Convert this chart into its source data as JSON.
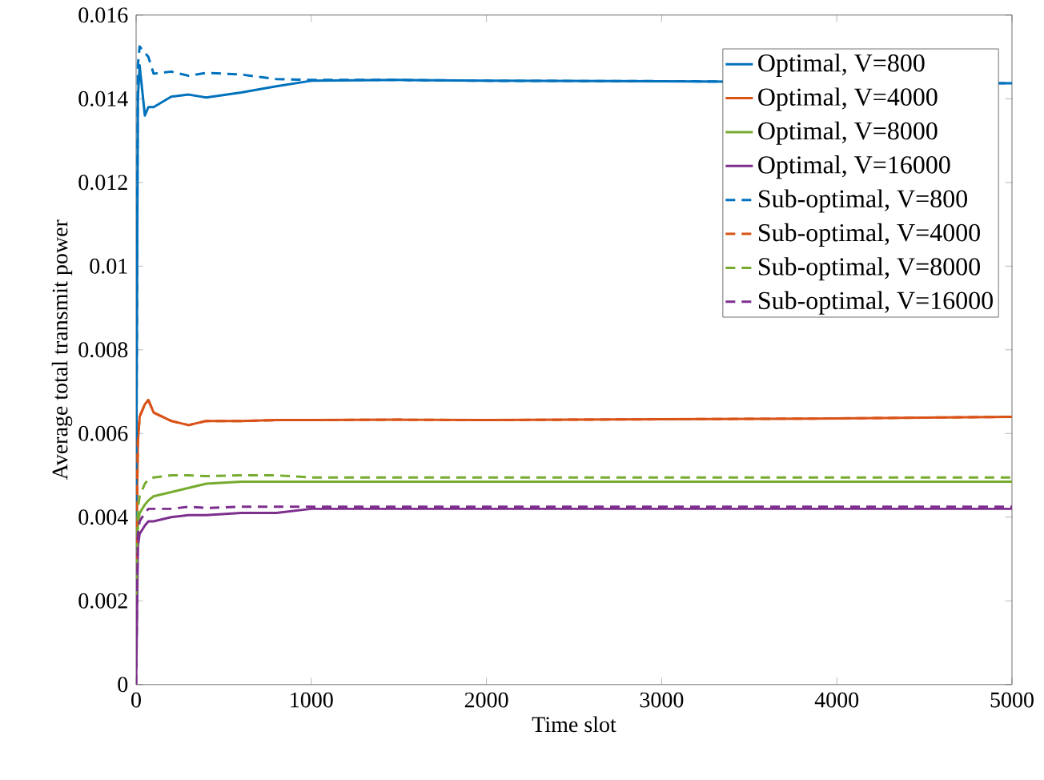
{
  "chart_data": {
    "type": "line",
    "xlabel": "Time slot",
    "ylabel": "Average total transmit power",
    "xlim": [
      0,
      5000
    ],
    "ylim": [
      0,
      0.016
    ],
    "xticks": [
      0,
      1000,
      2000,
      3000,
      4000,
      5000
    ],
    "yticks": [
      0,
      0.002,
      0.004,
      0.006,
      0.008,
      0.01,
      0.012,
      0.014,
      0.016
    ],
    "legend": "top right",
    "grid": false,
    "marker": "none",
    "x": [
      0,
      10,
      20,
      50,
      70,
      100,
      200,
      300,
      400,
      600,
      800,
      1000,
      1500,
      2000,
      3000,
      4000,
      5000
    ],
    "series": [
      {
        "name": "Optimal, V=800",
        "color": "#0072bd",
        "line_style": "solid",
        "values": [
          0.004,
          0.014,
          0.0148,
          0.0136,
          0.0138,
          0.0138,
          0.01405,
          0.0141,
          0.01403,
          0.01415,
          0.0143,
          0.01443,
          0.01445,
          0.01443,
          0.01442,
          null,
          0.01437
        ]
      },
      {
        "name": "Optimal, V=4000",
        "color": "#d95319",
        "line_style": "solid",
        "values": [
          0.003,
          0.0058,
          0.0064,
          0.0067,
          0.0068,
          0.0065,
          0.0063,
          0.0062,
          0.0063,
          0.0063,
          0.00632,
          0.00632,
          0.00633,
          0.00632,
          0.00634,
          0.00636,
          0.0064
        ]
      },
      {
        "name": "Optimal, V=8000",
        "color": "#77ac30",
        "line_style": "solid",
        "values": [
          0.002,
          0.0038,
          0.0041,
          0.0043,
          0.0044,
          0.0045,
          0.0046,
          0.0047,
          0.0048,
          0.00485,
          0.00485,
          0.00485,
          0.00485,
          0.00485,
          0.00485,
          0.00485,
          0.00485
        ]
      },
      {
        "name": "Optimal, V=16000",
        "color": "#7e2f8e",
        "line_style": "solid",
        "values": [
          0.0,
          0.0033,
          0.0036,
          0.0038,
          0.0039,
          0.0039,
          0.004,
          0.00405,
          0.00405,
          0.0041,
          0.0041,
          0.0042,
          0.0042,
          0.0042,
          0.0042,
          0.0042,
          0.0042
        ]
      },
      {
        "name": "Sub-optimal, V=800",
        "color": "#0072bd",
        "line_style": "dashed",
        "values": [
          0.004,
          0.0148,
          0.01525,
          0.0151,
          0.015,
          0.0146,
          0.01465,
          0.01455,
          0.01462,
          0.01458,
          0.01447,
          0.01445,
          0.01445,
          0.01443,
          0.01442,
          null,
          0.01437
        ]
      },
      {
        "name": "Sub-optimal, V=4000",
        "color": "#d95319",
        "line_style": "dashed",
        "values": [
          0.003,
          0.0058,
          0.0064,
          0.0067,
          0.0068,
          0.0065,
          0.0063,
          0.0062,
          0.0063,
          0.0063,
          0.00632,
          0.00632,
          0.00633,
          0.00632,
          0.00634,
          0.00636,
          0.0064
        ]
      },
      {
        "name": "Sub-optimal, V=8000",
        "color": "#77ac30",
        "line_style": "dashed",
        "values": [
          0.002,
          0.0042,
          0.0045,
          0.0048,
          0.0049,
          0.00495,
          0.005,
          0.005,
          0.00498,
          0.005,
          0.005,
          0.00495,
          0.00495,
          0.00495,
          0.00495,
          0.00495,
          0.00495
        ]
      },
      {
        "name": "Sub-optimal, V=16000",
        "color": "#7e2f8e",
        "line_style": "dashed",
        "values": [
          0.0,
          0.0036,
          0.0039,
          0.0041,
          0.0042,
          0.0042,
          0.0042,
          0.00425,
          0.00422,
          0.00425,
          0.00425,
          0.00425,
          0.00425,
          0.00425,
          0.00425,
          0.00425,
          0.00425
        ]
      }
    ]
  }
}
